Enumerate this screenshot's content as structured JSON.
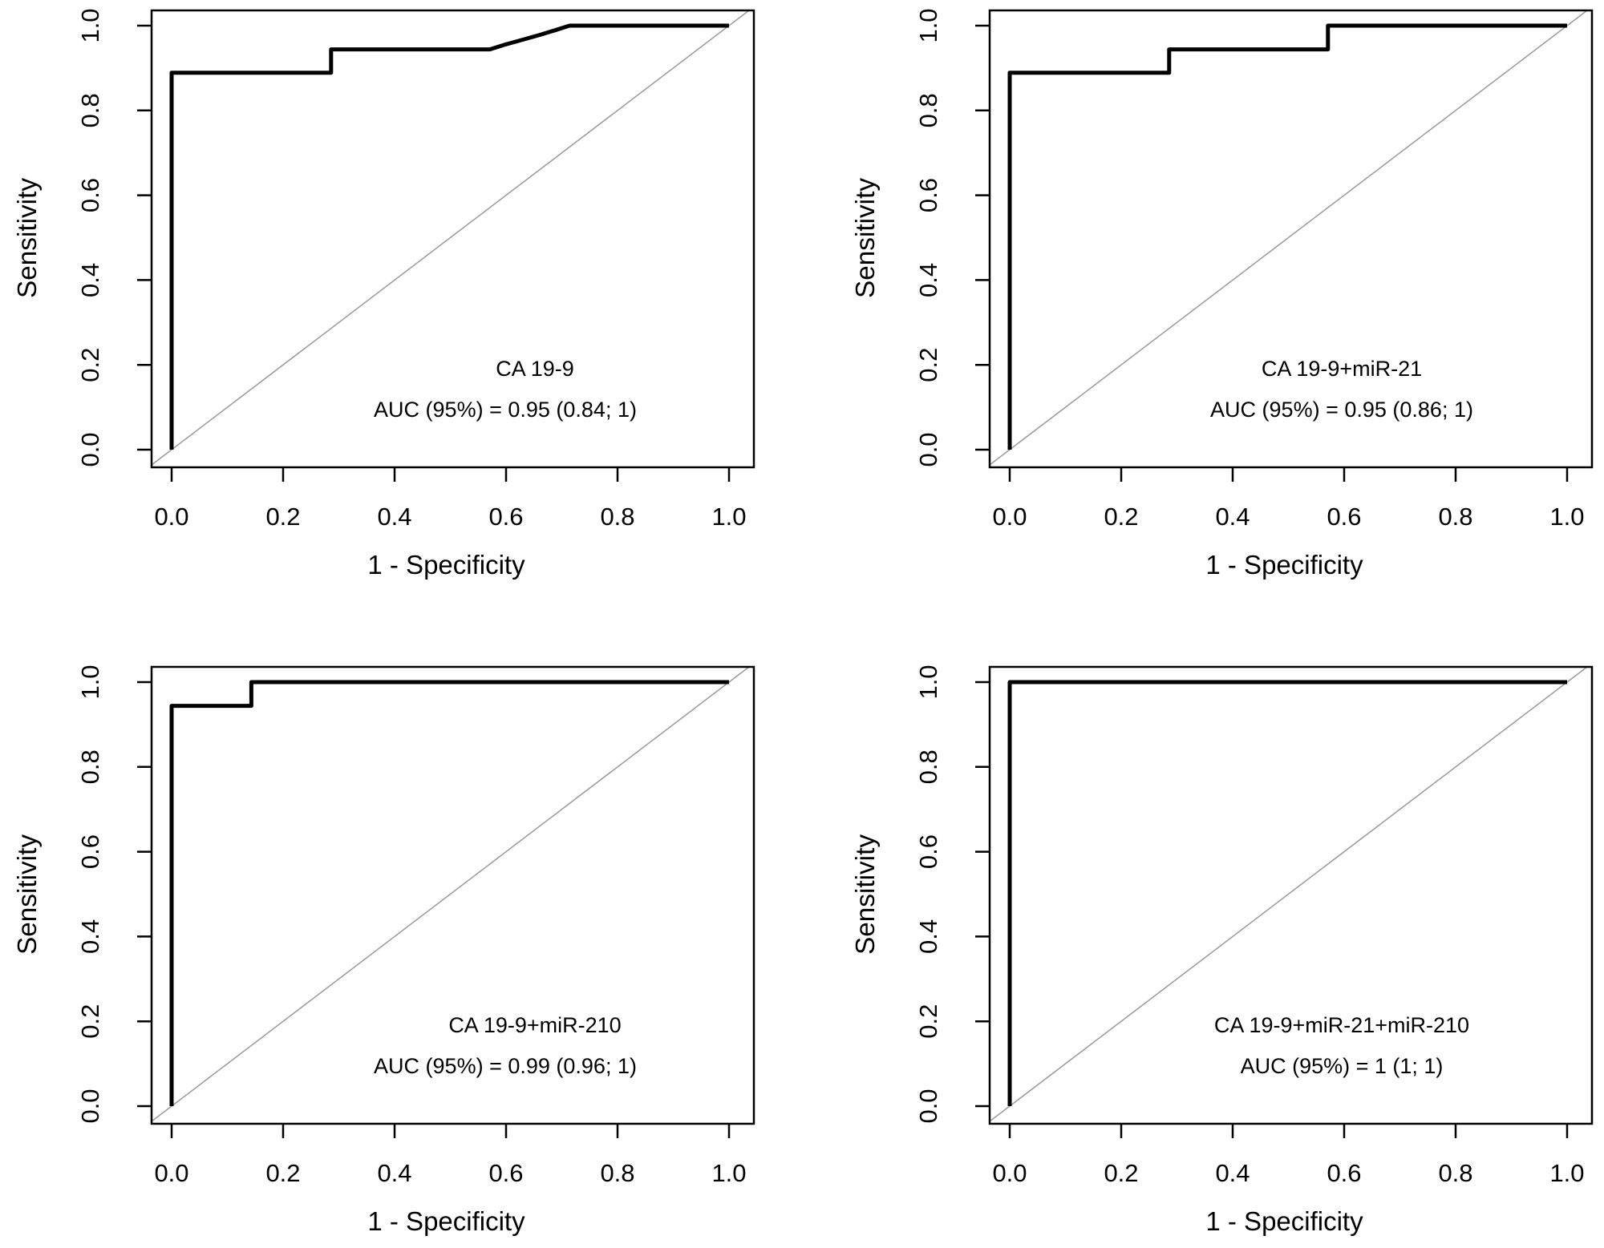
{
  "chart_data": [
    {
      "type": "line",
      "xlabel": "1 - Specificity",
      "ylabel": "Sensitivity",
      "xlim": [
        0,
        1
      ],
      "ylim": [
        0,
        1
      ],
      "xticks": [
        "0.0",
        "0.2",
        "0.4",
        "0.6",
        "0.8",
        "1.0"
      ],
      "yticks": [
        "0.0",
        "0.2",
        "0.4",
        "0.6",
        "0.8",
        "1.0"
      ],
      "grid": false,
      "reference_line": "diagonal",
      "annotation": [
        "CA 19-9",
        "AUC (95%) = 0.95 (0.84; 1)"
      ],
      "x": [
        0,
        0,
        0.286,
        0.286,
        0.571,
        0.6,
        0.63,
        0.66,
        0.69,
        0.714,
        1
      ],
      "y": [
        0,
        0.889,
        0.889,
        0.944,
        0.944,
        0.956,
        0.967,
        0.978,
        0.99,
        1,
        1
      ]
    },
    {
      "type": "line",
      "xlabel": "1 - Specificity",
      "ylabel": "Sensitivity",
      "xlim": [
        0,
        1
      ],
      "ylim": [
        0,
        1
      ],
      "xticks": [
        "0.0",
        "0.2",
        "0.4",
        "0.6",
        "0.8",
        "1.0"
      ],
      "yticks": [
        "0.0",
        "0.2",
        "0.4",
        "0.6",
        "0.8",
        "1.0"
      ],
      "grid": false,
      "reference_line": "diagonal",
      "annotation": [
        "CA 19-9+miR-21",
        "AUC (95%) = 0.95 (0.86; 1)"
      ],
      "x": [
        0,
        0,
        0.286,
        0.286,
        0.571,
        0.571,
        1
      ],
      "y": [
        0,
        0.889,
        0.889,
        0.944,
        0.944,
        1,
        1
      ]
    },
    {
      "type": "line",
      "xlabel": "1 - Specificity",
      "ylabel": "Sensitivity",
      "xlim": [
        0,
        1
      ],
      "ylim": [
        0,
        1
      ],
      "xticks": [
        "0.0",
        "0.2",
        "0.4",
        "0.6",
        "0.8",
        "1.0"
      ],
      "yticks": [
        "0.0",
        "0.2",
        "0.4",
        "0.6",
        "0.8",
        "1.0"
      ],
      "grid": false,
      "reference_line": "diagonal",
      "annotation": [
        "CA 19-9+miR-210",
        "AUC (95%) = 0.99 (0.96; 1)"
      ],
      "x": [
        0,
        0,
        0.143,
        0.143,
        1
      ],
      "y": [
        0,
        0.944,
        0.944,
        1,
        1
      ]
    },
    {
      "type": "line",
      "xlabel": "1 - Specificity",
      "ylabel": "Sensitivity",
      "xlim": [
        0,
        1
      ],
      "ylim": [
        0,
        1
      ],
      "xticks": [
        "0.0",
        "0.2",
        "0.4",
        "0.6",
        "0.8",
        "1.0"
      ],
      "yticks": [
        "0.0",
        "0.2",
        "0.4",
        "0.6",
        "0.8",
        "1.0"
      ],
      "grid": false,
      "reference_line": "diagonal",
      "annotation": [
        "CA 19-9+miR-21+miR-210",
        "AUC (95%) = 1 (1; 1)"
      ],
      "x": [
        0,
        0,
        1
      ],
      "y": [
        0,
        1,
        1
      ]
    }
  ]
}
